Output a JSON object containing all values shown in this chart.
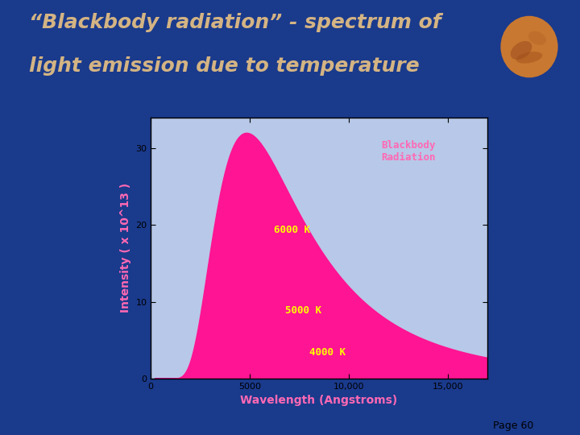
{
  "title_line1": "“Blackbody radiation” - spectrum of",
  "title_line2": "light emission due to temperature",
  "title_color": "#D4B483",
  "title_fontsize": 18,
  "bg_color": "#1A3A8C",
  "plot_bg": "#B8C8E8",
  "xlabel": "Wavelength (Angstroms)",
  "ylabel": "Intensity ( x 10^13 )",
  "xlabel_color": "#FF69B4",
  "ylabel_color": "#FF69B4",
  "axis_label_fontsize": 10,
  "tick_label_fontsize": 8,
  "xlim": [
    0,
    17000
  ],
  "ylim": [
    0,
    34
  ],
  "xticks": [
    0,
    5000,
    10000,
    15000
  ],
  "xtick_labels": [
    "0",
    "5000",
    "10,000",
    "15,000"
  ],
  "yticks": [
    0,
    10,
    20,
    30
  ],
  "legend_text": "Blackbody\nRadiation",
  "legend_color": "#FF69B4",
  "label_6000": "6000 K",
  "label_5000": "5000 K",
  "label_4000": "4000 K",
  "label_color": "#FFFF00",
  "color_6000": "#FF1493",
  "color_5000": "#7B00BB",
  "color_4000": "#5500AA",
  "page_text": "Page 60",
  "separator_color": "#C8A84B",
  "separator_color2": "#8B7340"
}
